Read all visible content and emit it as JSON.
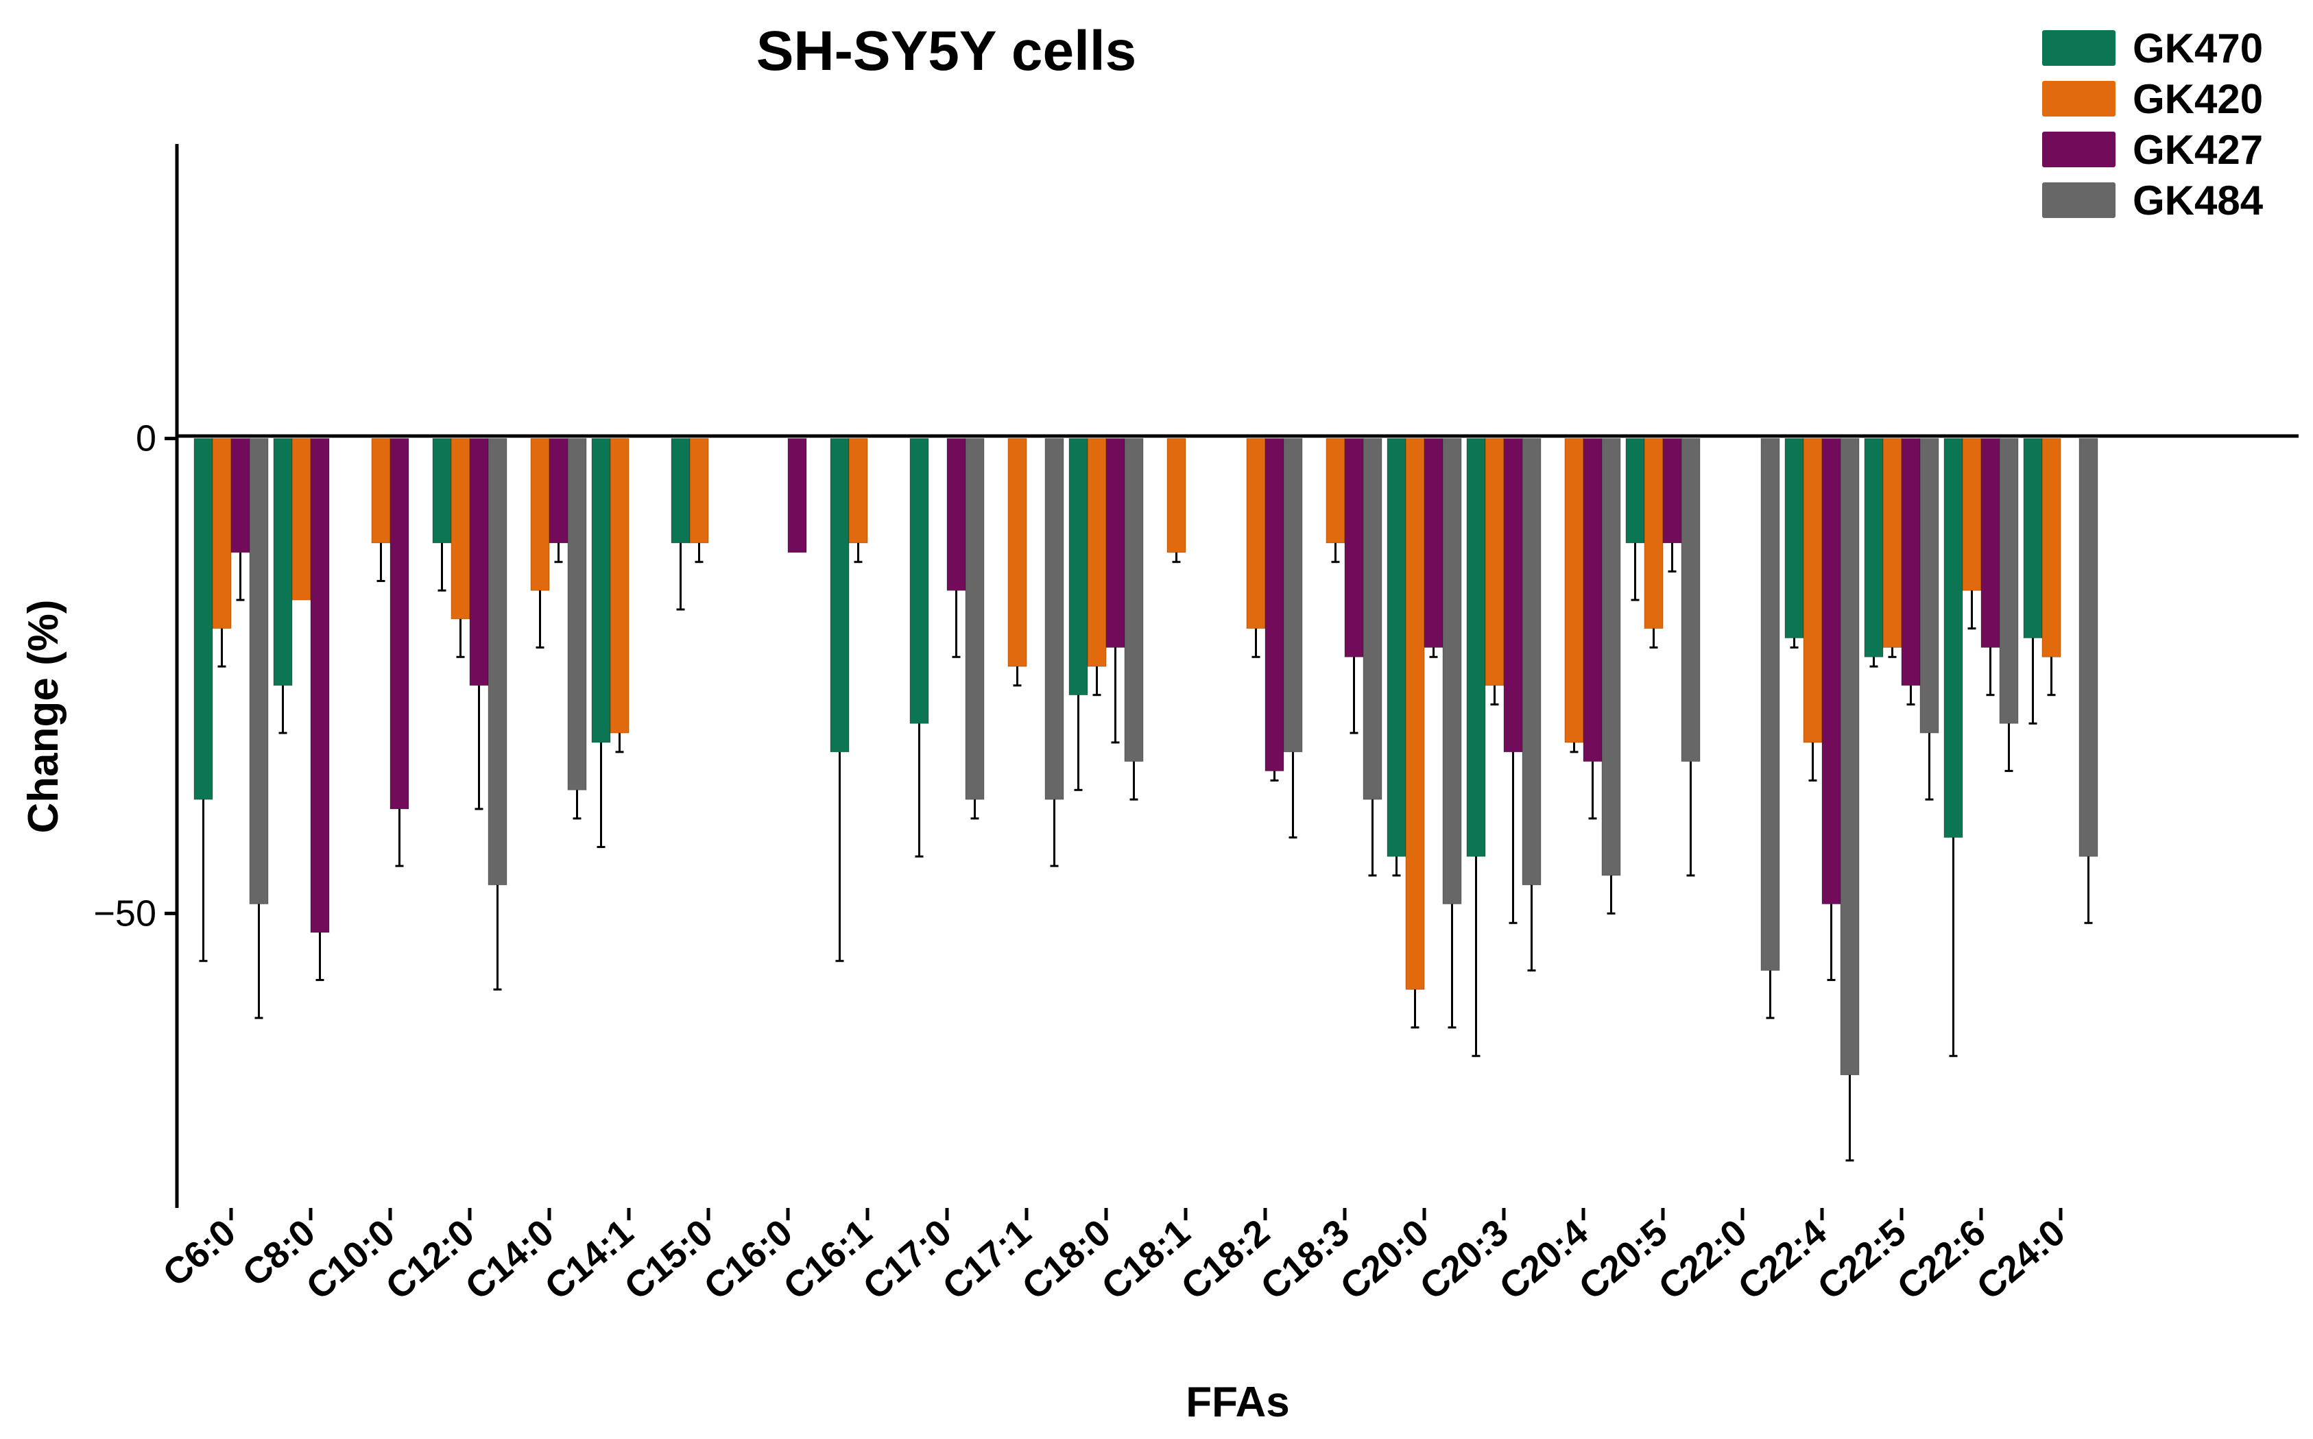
{
  "chart_data": {
    "type": "bar",
    "title": "SH-SY5Y cells",
    "xlabel": "FFAs",
    "ylabel": "Change (%)",
    "ylim": [
      -81,
      31
    ],
    "yticks": [
      0,
      -50
    ],
    "ytick_labels": [
      "0",
      "−50"
    ],
    "legend_position": "top-right",
    "categories": [
      "C6:0",
      "C8:0",
      "C10:0",
      "C12:0",
      "C14:0",
      "C14:1",
      "C15:0",
      "C16:0",
      "C16:1",
      "C17:0",
      "C17:1",
      "C18:0",
      "C18:1",
      "C18:2",
      "C18:3",
      "C20:0",
      "C20:3",
      "C20:4",
      "C20:5",
      "C22:0",
      "C22:4",
      "C22:5",
      "C22:6",
      "C24:0"
    ],
    "series": [
      {
        "name": "GK470",
        "color": "#0b7554",
        "values": [
          -38,
          -26,
          null,
          -11,
          null,
          -32,
          -11,
          null,
          -33,
          -30,
          null,
          -27,
          null,
          null,
          null,
          -44,
          -44,
          null,
          -11,
          null,
          -21,
          -23,
          -42,
          -21
        ],
        "errors": [
          17,
          5,
          null,
          5,
          null,
          11,
          7,
          null,
          22,
          14,
          null,
          10,
          null,
          null,
          null,
          2,
          21,
          null,
          6,
          null,
          1,
          1,
          23,
          9
        ]
      },
      {
        "name": "GK420",
        "color": "#e06a0d",
        "values": [
          -20,
          -17,
          -11,
          -19,
          -16,
          -31,
          -11,
          null,
          -11,
          null,
          -24,
          -24,
          -12,
          -20,
          -11,
          -58,
          -26,
          -32,
          -20,
          null,
          -32,
          -22,
          -16,
          -23
        ],
        "errors": [
          4,
          null,
          4,
          4,
          6,
          2,
          2,
          null,
          2,
          null,
          2,
          3,
          1,
          3,
          2,
          4,
          2,
          1,
          2,
          null,
          4,
          1,
          4,
          4
        ]
      },
      {
        "name": "GK427",
        "color": "#720c5a",
        "values": [
          -12,
          -52,
          -39,
          -26,
          -11,
          null,
          null,
          -12,
          null,
          -16,
          null,
          -22,
          null,
          -35,
          -23,
          -22,
          -33,
          -34,
          -11,
          null,
          -49,
          -26,
          -22,
          null
        ],
        "errors": [
          5,
          5,
          6,
          13,
          2,
          null,
          null,
          0,
          null,
          7,
          null,
          10,
          null,
          1,
          8,
          1,
          18,
          6,
          3,
          null,
          8,
          2,
          5,
          null
        ]
      },
      {
        "name": "GK484",
        "color": "#676767",
        "values": [
          -49,
          null,
          null,
          -47,
          -37,
          null,
          null,
          null,
          null,
          -38,
          -38,
          -34,
          null,
          -33,
          -38,
          -49,
          -47,
          -46,
          -34,
          -56,
          -67,
          -31,
          -30,
          -44
        ],
        "errors": [
          12,
          null,
          null,
          11,
          3,
          null,
          null,
          null,
          null,
          2,
          7,
          4,
          null,
          9,
          8,
          13,
          9,
          4,
          12,
          5,
          9,
          7,
          5,
          7
        ]
      }
    ]
  }
}
